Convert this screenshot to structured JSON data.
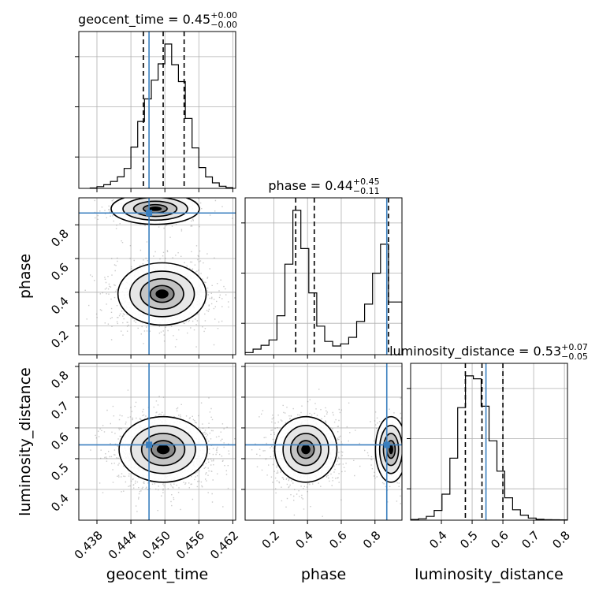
{
  "chart_data": {
    "type": "corner",
    "parameters": [
      "geocent_time",
      "phase",
      "luminosity_distance"
    ],
    "axis_labels": [
      "geocent_time",
      "phase",
      "luminosity_distance"
    ],
    "titles": [
      {
        "text": "geocent_time = 0.45",
        "plus": "+0.00",
        "minus": "−0.00"
      },
      {
        "text": "phase = 0.44",
        "plus": "+0.45",
        "minus": "−0.11"
      },
      {
        "text": "luminosity_distance = 0.53",
        "plus": "+0.07",
        "minus": "−0.05"
      }
    ],
    "ranges": [
      [
        0.4348,
        0.4625
      ],
      [
        0.03,
        0.96
      ],
      [
        0.3,
        0.81
      ]
    ],
    "ticks": [
      {
        "values": [
          0.438,
          0.444,
          0.45,
          0.456,
          0.462
        ],
        "labels": [
          "0.438",
          "0.444",
          "0.450",
          "0.456",
          "0.462"
        ]
      },
      {
        "values": [
          0.2,
          0.4,
          0.6,
          0.8
        ],
        "labels": [
          "0.2",
          "0.4",
          "0.6",
          "0.8"
        ]
      },
      {
        "values": [
          0.4,
          0.5,
          0.6,
          0.7,
          0.8
        ],
        "labels": [
          "0.4",
          "0.5",
          "0.6",
          "0.7",
          "0.8"
        ]
      }
    ],
    "truths": [
      0.4472,
      0.87,
      0.545
    ],
    "quantiles": [
      [
        0.4462,
        0.4497,
        0.4534
      ],
      [
        0.33,
        0.44,
        0.88
      ],
      [
        0.478,
        0.532,
        0.6
      ]
    ],
    "histograms": [
      {
        "edges": [
          0.4368,
          0.438,
          0.4392,
          0.4404,
          0.4416,
          0.4428,
          0.444,
          0.4452,
          0.4464,
          0.4476,
          0.4488,
          0.45,
          0.4512,
          0.4524,
          0.4536,
          0.4548,
          0.456,
          0.4572,
          0.4584,
          0.4596,
          0.4608,
          0.462
        ],
        "counts": [
          0.3,
          1.2,
          2.5,
          4.8,
          8.0,
          13.8,
          28.6,
          46.4,
          62.0,
          75.0,
          86.3,
          100,
          85.7,
          74.0,
          48.4,
          28.0,
          14.4,
          7.9,
          3.8,
          1.5,
          0.5
        ]
      },
      {
        "edges": [
          0.03,
          0.0772,
          0.1244,
          0.1717,
          0.2189,
          0.2661,
          0.3133,
          0.3605,
          0.4078,
          0.455,
          0.5022,
          0.5494,
          0.5966,
          0.6439,
          0.6911,
          0.7383,
          0.7855,
          0.8327,
          0.88,
          0.96
        ],
        "counts": [
          1.5,
          3.8,
          6.5,
          10.2,
          27.0,
          62.7,
          100,
          73.5,
          42.8,
          19.8,
          9.2,
          6.0,
          7.5,
          12.0,
          23.0,
          35.0,
          56.5,
          76.5,
          36.5
        ]
      },
      {
        "edges": [
          0.3,
          0.3255,
          0.351,
          0.3765,
          0.402,
          0.4275,
          0.453,
          0.4785,
          0.504,
          0.5295,
          0.555,
          0.5805,
          0.606,
          0.6315,
          0.657,
          0.6825,
          0.708,
          0.7335,
          0.759,
          0.7845,
          0.81
        ],
        "counts": [
          0.5,
          1.0,
          2.6,
          6.8,
          18.0,
          43.0,
          78.0,
          100,
          98.0,
          79.0,
          55.0,
          34.0,
          15.5,
          7.2,
          3.5,
          1.5,
          0.6,
          0.4,
          0.3,
          0.2
        ]
      }
    ],
    "density_2d": [
      {
        "x": "geocent_time",
        "y": "phase",
        "modes": [
          {
            "x": 0.4495,
            "y": 0.39,
            "sx": 0.0038,
            "sy": 0.09,
            "weight": 0.75
          },
          {
            "x": 0.4483,
            "y": 0.895,
            "sx": 0.0038,
            "sy": 0.045,
            "weight": 0.25
          }
        ]
      },
      {
        "x": "geocent_time",
        "y": "luminosity_distance",
        "modes": [
          {
            "x": 0.4497,
            "y": 0.53,
            "sx": 0.0038,
            "sy": 0.052,
            "weight": 1.0
          }
        ]
      },
      {
        "x": "phase",
        "y": "luminosity_distance",
        "modes": [
          {
            "x": 0.39,
            "y": 0.53,
            "sx": 0.09,
            "sy": 0.052,
            "weight": 0.75
          },
          {
            "x": 0.895,
            "y": 0.53,
            "sx": 0.045,
            "sy": 0.052,
            "weight": 0.25
          }
        ]
      }
    ]
  }
}
